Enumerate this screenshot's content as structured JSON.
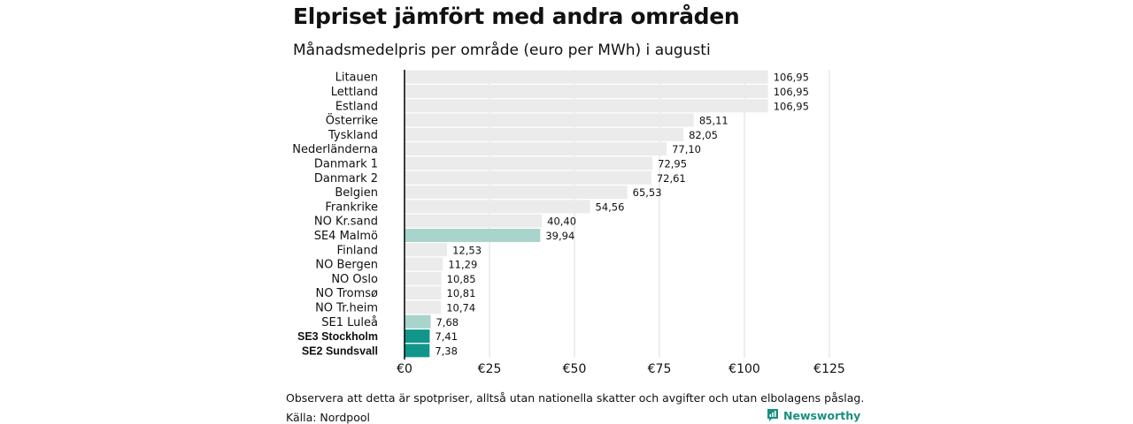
{
  "title": "Elpriset jämfört med andra områden",
  "subtitle": "Månadsmedelpris per område (euro per MWh) i augusti",
  "note": "Observera att detta är spotpriser, alltså utan nationella skatter och avgifter och utan elbolagens påslag.",
  "source": "Källa: Nordpool",
  "brand": {
    "name": "Newsworthy",
    "icon": "newsworthy-logo-icon"
  },
  "colors": {
    "default": "#ebebeb",
    "se_light": "#a8d4cc",
    "se_dark": "#13968a",
    "grid": "#dddddd",
    "axis": "#000000"
  },
  "chart_data": {
    "type": "bar",
    "orientation": "horizontal",
    "categories": [
      "Litauen",
      "Lettland",
      "Estland",
      "Österrike",
      "Tyskland",
      "Nederländerna",
      "Danmark  1",
      "Danmark  2",
      "Belgien",
      "Frankrike",
      "NO Kr.sand",
      "SE4  Malmö",
      "Finland",
      "NO Bergen",
      "NO Oslo",
      "NO Tromsø",
      "NO Tr.heim",
      "SE1  Luleå",
      "SE3 Stockholm",
      "SE2 Sundsvall"
    ],
    "values": [
      106.95,
      106.95,
      106.95,
      85.11,
      82.05,
      77.1,
      72.95,
      72.61,
      65.53,
      54.56,
      40.4,
      39.94,
      12.53,
      11.29,
      10.85,
      10.81,
      10.74,
      7.68,
      7.41,
      7.38
    ],
    "value_labels": [
      "106,95",
      "106,95",
      "106,95",
      "85,11",
      "82,05",
      "77,10",
      "72,95",
      "72,61",
      "65,53",
      "54,56",
      "40,40",
      "39,94",
      "12,53",
      "11,29",
      "10,85",
      "10,81",
      "10,74",
      "7,68",
      "7,41",
      "7,38"
    ],
    "highlight": [
      "none",
      "none",
      "none",
      "none",
      "none",
      "none",
      "none",
      "none",
      "none",
      "none",
      "none",
      "light",
      "none",
      "none",
      "none",
      "none",
      "none",
      "light",
      "dark",
      "dark"
    ],
    "bold_labels": [
      false,
      false,
      false,
      false,
      false,
      false,
      false,
      false,
      false,
      false,
      false,
      false,
      false,
      false,
      false,
      false,
      false,
      false,
      true,
      true
    ],
    "x_ticks": [
      0,
      25,
      50,
      75,
      100,
      125
    ],
    "x_tick_labels": [
      "€0",
      "€25",
      "€50",
      "€75",
      "€100",
      "€125"
    ],
    "xlim": [
      0,
      125
    ],
    "xlabel": "",
    "ylabel": "",
    "grid": true
  }
}
